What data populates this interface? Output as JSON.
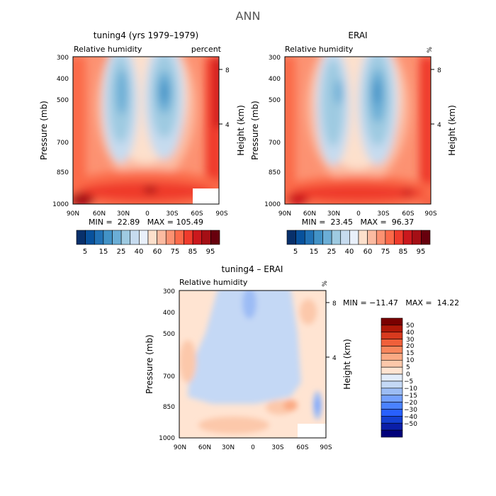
{
  "figure": {
    "title": "ANN"
  },
  "colors": {
    "rh_scale": [
      "#08306b",
      "#08519c",
      "#2171b5",
      "#4292c6",
      "#6baed6",
      "#9ecae1",
      "#c6dbef",
      "#e9f0fa",
      "#fde0cc",
      "#fcbba1",
      "#fc9272",
      "#fb6a4a",
      "#ef3b2c",
      "#cb181d",
      "#a50f15",
      "#67000d"
    ],
    "diff_scale": [
      "#00007a",
      "#0a1ea8",
      "#1440d2",
      "#2860ff",
      "#4a82ff",
      "#74a0ff",
      "#9cbcf5",
      "#c4d8f5",
      "#e2ecfb",
      "#ffe4d2",
      "#fcc8aa",
      "#fbaa84",
      "#f8865c",
      "#f0603a",
      "#d83a1e",
      "#b01808",
      "#7a0000"
    ]
  },
  "chart_data": [
    {
      "type": "heatmap",
      "title": "tuning4 (yrs 1979–1979)",
      "left_subtitle": "Relative humidity",
      "right_subtitle": "percent",
      "ylabel": "Pressure (mb)",
      "y2label": "Height (km)",
      "x_ticks": [
        "90N",
        "60N",
        "30N",
        "0",
        "30S",
        "60S",
        "90S"
      ],
      "y_ticks": [
        "300",
        "400",
        "500",
        "700",
        "850",
        "1000"
      ],
      "y2_ticks": [
        "8",
        "4"
      ],
      "min": "22.89",
      "max": "105.49",
      "stats_text": "MIN =  22.89   MAX = 105.49",
      "colorbar_labels": [
        "5",
        "15",
        "25",
        "40",
        "60",
        "75",
        "85",
        "95"
      ]
    },
    {
      "type": "heatmap",
      "title": "ERAI",
      "left_subtitle": "Relative humidity",
      "right_subtitle": "%",
      "ylabel": "Pressure (mb)",
      "y2label": "Height (km)",
      "x_ticks": [
        "90N",
        "60N",
        "30N",
        "0",
        "30S",
        "60S",
        "90S"
      ],
      "y_ticks": [
        "300",
        "400",
        "500",
        "700",
        "850",
        "1000"
      ],
      "y2_ticks": [
        "8",
        "4"
      ],
      "min": "23.45",
      "max": "96.37",
      "stats_text": "MIN =  23.45   MAX =  96.37",
      "colorbar_labels": [
        "5",
        "15",
        "25",
        "40",
        "60",
        "75",
        "85",
        "95"
      ]
    },
    {
      "type": "heatmap",
      "title": "tuning4 – ERAI",
      "left_subtitle": "Relative humidity",
      "right_subtitle": "%",
      "ylabel": "Pressure (mb)",
      "y2label": "Height (km)",
      "x_ticks": [
        "90N",
        "60N",
        "30N",
        "0",
        "30S",
        "60S",
        "90S"
      ],
      "y_ticks": [
        "300",
        "400",
        "500",
        "700",
        "850",
        "1000"
      ],
      "y2_ticks": [
        "8",
        "4"
      ],
      "min": "-11.47",
      "max": "14.22",
      "stats_text": "MIN = −11.47   MAX =  14.22",
      "colorbar_labels": [
        "50",
        "40",
        "30",
        "20",
        "15",
        "10",
        "5",
        "0",
        "−5",
        "−10",
        "−15",
        "−20",
        "−30",
        "−40",
        "−50"
      ]
    }
  ]
}
